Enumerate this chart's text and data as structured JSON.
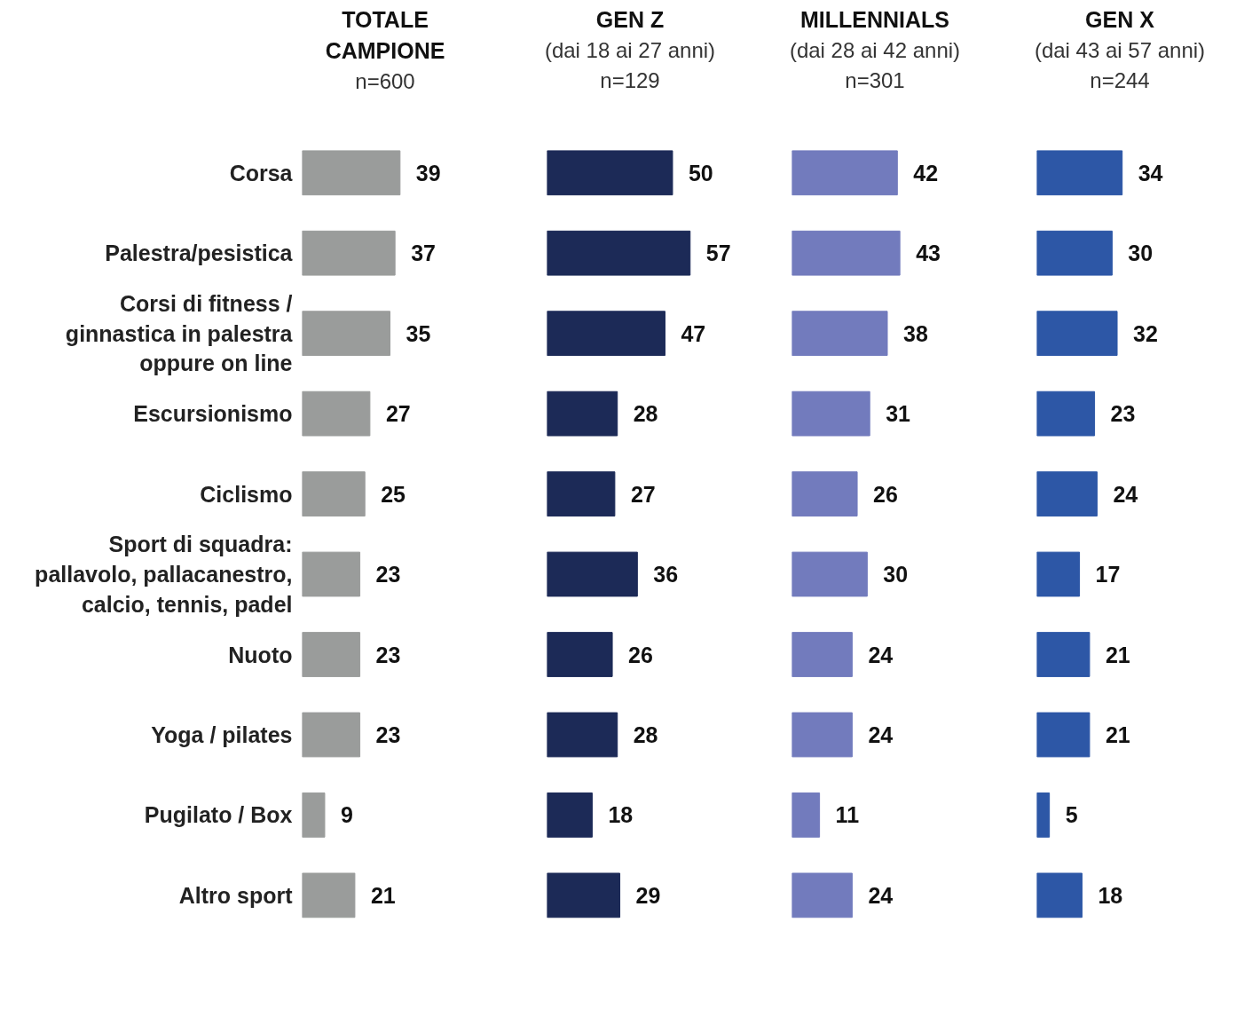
{
  "chart_data": [
    {
      "type": "bar",
      "orientation": "horizontal",
      "title": "TOTALE CAMPIONE",
      "subtitle": "n=600",
      "categories": [
        "Corsa",
        "Palestra/pesistica",
        "Corsi di fitness / ginnastica in palestra oppure on line",
        "Escursionismo",
        "Ciclismo",
        "Sport di squadra: pallavolo, pallacanestro, calcio, tennis, padel",
        "Nuoto",
        "Yoga / pilates",
        "Pugilato / Box",
        "Altro sport"
      ],
      "values": [
        39,
        37,
        35,
        27,
        25,
        23,
        23,
        23,
        9,
        21
      ],
      "color": "#9a9c9b",
      "data_labels": true,
      "tick_labels": "y"
    },
    {
      "type": "bar",
      "orientation": "horizontal",
      "title": "GEN Z",
      "subtitle": "(dai 18 ai 27 anni)\nn=129",
      "categories": [
        null,
        null,
        null,
        null,
        null,
        null,
        null,
        null,
        null,
        null
      ],
      "values": [
        50,
        57,
        47,
        28,
        27,
        36,
        26,
        28,
        18,
        29
      ],
      "color": "#1c2a57",
      "data_labels": true
    },
    {
      "type": "bar",
      "orientation": "horizontal",
      "title": "MILLENNIALS",
      "subtitle": "(dai 28 ai 42 anni)\nn=301",
      "categories": [
        null,
        null,
        null,
        null,
        null,
        null,
        null,
        null,
        null,
        null
      ],
      "values": [
        42,
        43,
        38,
        31,
        26,
        30,
        24,
        24,
        11,
        24
      ],
      "color": "#727bbd",
      "data_labels": true
    },
    {
      "type": "bar",
      "orientation": "horizontal",
      "title": "GEN X",
      "subtitle": "(dai 43 ai 57 anni)\nn=244",
      "categories": [
        null,
        null,
        null,
        null,
        null,
        null,
        null,
        null,
        null,
        null
      ],
      "values": [
        34,
        30,
        32,
        23,
        24,
        17,
        21,
        21,
        5,
        18
      ],
      "color": "#2d57a6",
      "data_labels": true
    }
  ]
}
